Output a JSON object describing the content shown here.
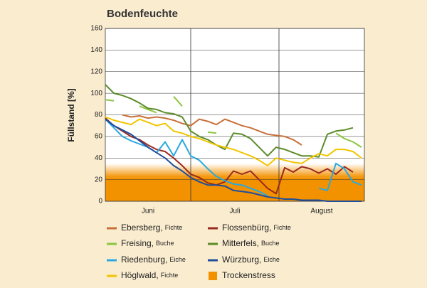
{
  "chart_data": {
    "type": "line",
    "title": "Bodenfeuchte",
    "ylabel": "Füllstand  [%]",
    "x": [
      0,
      3,
      6,
      9,
      12,
      15,
      18,
      21,
      24,
      27,
      30,
      33,
      36,
      39,
      42,
      45,
      48,
      51,
      54,
      57,
      60,
      63,
      66,
      69,
      72,
      75,
      78,
      81,
      84,
      87,
      90
    ],
    "xlim": [
      0,
      91
    ],
    "x_gridlines": [
      30,
      61
    ],
    "months": [
      "Juni",
      "Juli",
      "August"
    ],
    "ylim": [
      0,
      160
    ],
    "yticks": [
      0,
      20,
      40,
      60,
      80,
      100,
      120,
      140,
      160
    ],
    "grid": true,
    "stress": {
      "name": "Trockenstress",
      "color": "#f39200",
      "ylim": [
        0,
        22
      ],
      "fade_top": 35
    },
    "series": [
      {
        "name": "Ebersberg,",
        "species": "Fichte",
        "color": "#c8703a",
        "values": [
          null,
          null,
          80,
          78,
          79,
          77,
          78,
          77,
          75,
          72,
          70,
          76,
          74,
          71,
          76,
          73,
          70,
          68,
          65,
          62,
          61,
          60,
          57,
          52,
          null,
          null,
          null,
          null,
          null,
          null,
          null
        ]
      },
      {
        "name": "Flossenbürg,",
        "species": "Fichte",
        "color": "#9b2a1e",
        "values": [
          77,
          70,
          65,
          60,
          57,
          52,
          48,
          46,
          40,
          33,
          25,
          22,
          17,
          15,
          18,
          28,
          25,
          28,
          20,
          12,
          7,
          31,
          27,
          32,
          30,
          26,
          30,
          25,
          32,
          27,
          null
        ]
      },
      {
        "name": "Freising,",
        "species": "Buche",
        "color": "#8cc63f",
        "values": [
          94,
          93,
          null,
          null,
          88,
          85,
          82,
          null,
          97,
          88,
          null,
          null,
          64,
          63,
          null,
          null,
          null,
          null,
          null,
          null,
          null,
          null,
          null,
          null,
          null,
          null,
          null,
          63,
          58,
          55,
          50
        ]
      },
      {
        "name": "Mitterfels,",
        "species": "Buche",
        "color": "#5b8c2a",
        "values": [
          108,
          100,
          98,
          95,
          91,
          86,
          85,
          82,
          81,
          78,
          65,
          60,
          57,
          52,
          48,
          63,
          62,
          58,
          50,
          42,
          50,
          48,
          45,
          42,
          42,
          41,
          62,
          65,
          66,
          68,
          null
        ]
      },
      {
        "name": "Riedenburg,",
        "species": "Eiche",
        "color": "#29a9e0",
        "values": [
          76,
          68,
          60,
          56,
          53,
          50,
          45,
          55,
          42,
          57,
          42,
          38,
          30,
          23,
          19,
          16,
          15,
          12,
          9,
          5,
          null,
          null,
          null,
          null,
          null,
          12,
          10,
          35,
          30,
          18,
          15
        ]
      },
      {
        "name": "Würzburg,",
        "species": "Eiche",
        "color": "#1f4e9c",
        "values": [
          76,
          70,
          66,
          62,
          56,
          50,
          45,
          40,
          33,
          28,
          22,
          18,
          15,
          15,
          14,
          10,
          9,
          8,
          6,
          4,
          3,
          2,
          2,
          1,
          1,
          1,
          0,
          0,
          0,
          0,
          0
        ]
      },
      {
        "name": "Höglwald,",
        "species": "Fichte",
        "color": "#f2c500",
        "values": [
          78,
          75,
          73,
          71,
          76,
          73,
          70,
          72,
          65,
          63,
          60,
          58,
          55,
          52,
          50,
          48,
          45,
          42,
          38,
          33,
          40,
          38,
          36,
          35,
          40,
          44,
          42,
          48,
          48,
          46,
          40
        ]
      }
    ]
  }
}
